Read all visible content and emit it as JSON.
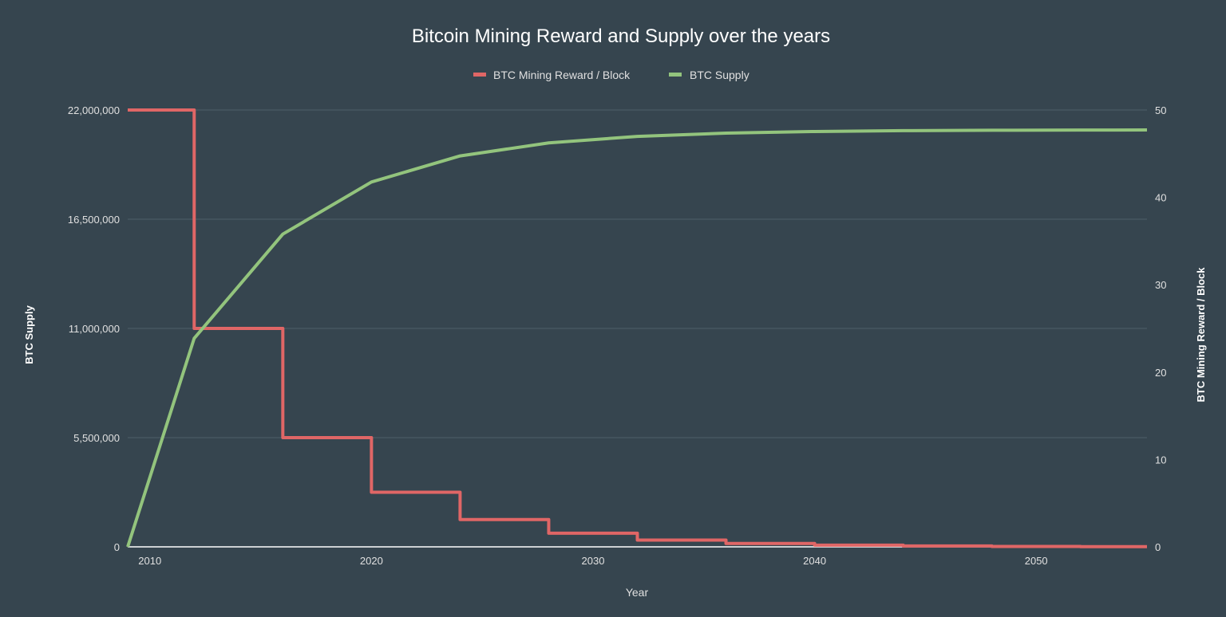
{
  "chart_data": {
    "type": "line",
    "title": "Bitcoin Mining Reward and Supply over the years",
    "xlabel": "Year",
    "ylabel_left": "BTC Supply",
    "ylabel_right": "BTC Mining Reward / Block",
    "xlim": [
      2009,
      2055
    ],
    "ylim_left": [
      0,
      22000000
    ],
    "ylim_right": [
      0,
      50
    ],
    "x_ticks": [
      "2010",
      "2020",
      "2030",
      "2040",
      "2050"
    ],
    "y_left_ticks": [
      "0",
      "5,500,000",
      "11,000,000",
      "16,500,000",
      "22,000,000"
    ],
    "y_right_ticks": [
      "0",
      "10",
      "20",
      "30",
      "40",
      "50"
    ],
    "grid": true,
    "legend_position": "top",
    "background": "#36454f",
    "series": [
      {
        "name": "BTC Mining Reward / Block",
        "axis": "right",
        "color": "#e06666",
        "step": true,
        "x": [
          2009,
          2012,
          2016,
          2020,
          2024,
          2028,
          2032,
          2036,
          2040,
          2044,
          2048,
          2052,
          2055
        ],
        "values": [
          50,
          25,
          12.5,
          6.25,
          3.125,
          1.5625,
          0.78125,
          0.390625,
          0.1953125,
          0.09765625,
          0.048828125,
          0.0244140625,
          0.0244140625
        ]
      },
      {
        "name": "BTC Supply",
        "axis": "left",
        "color": "#93c47d",
        "step": false,
        "x": [
          2009,
          2012,
          2016,
          2020,
          2024,
          2028,
          2032,
          2036,
          2040,
          2044,
          2048,
          2052,
          2055
        ],
        "values": [
          0,
          10500000,
          15750000,
          18375000,
          19687500,
          20343750,
          20671875,
          20835938,
          20917969,
          20958984,
          20979492,
          20989746,
          20995000
        ]
      }
    ]
  }
}
